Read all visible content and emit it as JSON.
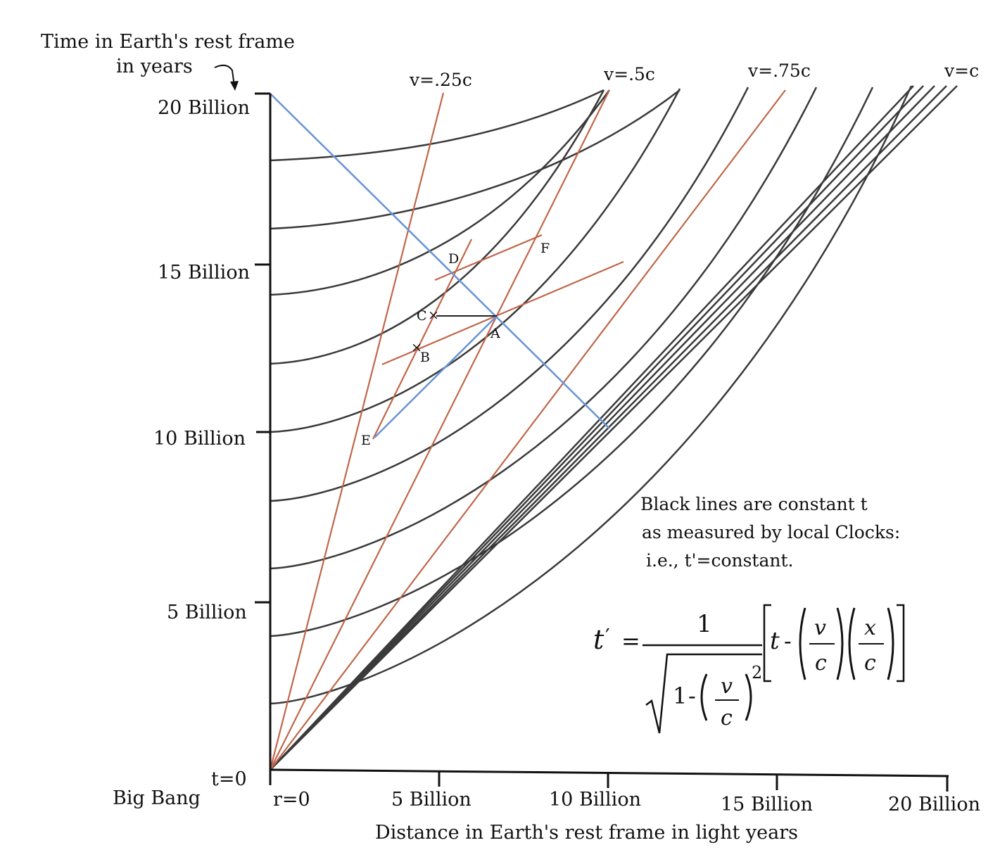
{
  "y_axis": {
    "title_line1": "Time in Earth's rest frame",
    "title_line2": "in years",
    "ticks": [
      {
        "value": 0,
        "label": "t=0"
      },
      {
        "value": 5,
        "label": "5 Billion"
      },
      {
        "value": 10,
        "label": "10 Billion"
      },
      {
        "value": 15,
        "label": "15 Billion"
      },
      {
        "value": 20,
        "label": "20 Billion"
      }
    ],
    "origin_caption": "Big Bang"
  },
  "x_axis": {
    "title": "Distance in Earth's rest frame in light years",
    "ticks": [
      {
        "value": 0,
        "label": "r=0"
      },
      {
        "value": 5,
        "label": "5 Billion"
      },
      {
        "value": 10,
        "label": "10 Billion"
      },
      {
        "value": 15,
        "label": "15 Billion"
      },
      {
        "value": 20,
        "label": "20 Billion"
      }
    ]
  },
  "worldline_labels": [
    {
      "text": "v=.25c"
    },
    {
      "text": "v=.5c"
    },
    {
      "text": "v=.75c"
    },
    {
      "text": "v=c"
    }
  ],
  "points": [
    {
      "label": "A"
    },
    {
      "label": "B"
    },
    {
      "label": "C"
    },
    {
      "label": "D"
    },
    {
      "label": "E"
    },
    {
      "label": "F"
    }
  ],
  "note": {
    "line1": "Black lines are constant t",
    "line2": "as measured by local Clocks:",
    "line3": "i.e., t'=constant."
  },
  "equation": {
    "lhs": "t",
    "prime": "′",
    "equals": "=",
    "numerator": "1",
    "one": "1",
    "minus": "-",
    "v": "v",
    "c": "c",
    "x": "x",
    "t": "t",
    "exponent": "2"
  },
  "colors": {
    "constant_time_lines": "#3a3a3a",
    "worldlines": "#c0664a",
    "light_signals": "#6b95d6",
    "axes": "#111111"
  }
}
